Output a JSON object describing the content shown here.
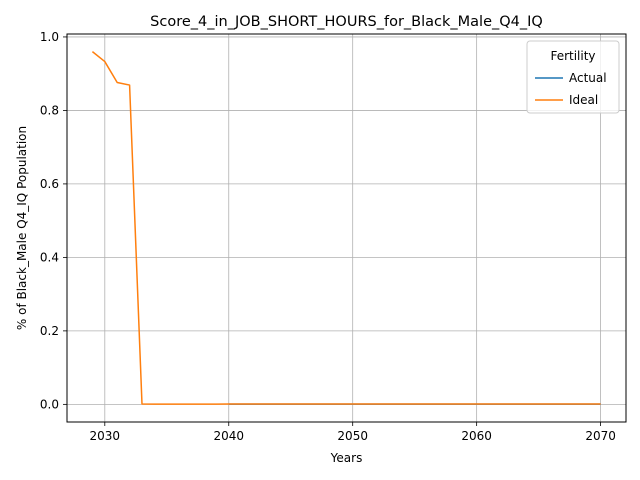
{
  "chart_data": {
    "type": "line",
    "title": "Score_4_in_JOB_SHORT_HOURS_for_Black_Male_Q4_IQ",
    "xlabel": "Years",
    "ylabel": "% of Black_Male Q4_IQ Population",
    "xlim": [
      2026.95,
      2072.05
    ],
    "ylim": [
      -0.048,
      1.008
    ],
    "xticks": [
      2030,
      2040,
      2050,
      2060,
      2070
    ],
    "yticks": [
      0.0,
      0.2,
      0.4,
      0.6,
      0.8,
      1.0
    ],
    "xtick_labels": [
      "2030",
      "2040",
      "2050",
      "2060",
      "2070"
    ],
    "ytick_labels": [
      "0.0",
      "0.2",
      "0.4",
      "0.6",
      "0.8",
      "1.0"
    ],
    "grid": true,
    "legend": {
      "title": "Fertility",
      "placement": "top-right"
    },
    "series": [
      {
        "name": "Actual",
        "color": "#1f77b4",
        "x": [
          2040,
          2041,
          2042,
          2043,
          2044,
          2045,
          2046,
          2047,
          2048,
          2049,
          2050,
          2051,
          2052,
          2053,
          2054,
          2055,
          2056,
          2057,
          2058,
          2059,
          2060,
          2061,
          2062,
          2063,
          2064,
          2065,
          2066,
          2067,
          2068,
          2069,
          2070
        ],
        "y": [
          0.0005,
          0.0005,
          0.0005,
          0.0005,
          0.0005,
          0.0005,
          0.0005,
          0.0005,
          0.0005,
          0.0005,
          0.0005,
          0.0005,
          0.0005,
          0.0005,
          0.0005,
          0.0005,
          0.0005,
          0.0005,
          0.0005,
          0.0005,
          0.0005,
          0.0005,
          0.0005,
          0.0005,
          0.0005,
          0.0005,
          0.0005,
          0.0005,
          0.0005,
          0.0005,
          0.0005
        ]
      },
      {
        "name": "Ideal",
        "color": "#ff7f0e",
        "x": [
          2029,
          2030,
          2031,
          2032,
          2033,
          2034,
          2035,
          2036,
          2037,
          2038,
          2039,
          2040,
          2041,
          2042,
          2043,
          2044,
          2045,
          2046,
          2047,
          2048,
          2049,
          2050,
          2051,
          2052,
          2053,
          2054,
          2055,
          2056,
          2057,
          2058,
          2059,
          2060,
          2061,
          2062,
          2063,
          2064,
          2065,
          2066,
          2067,
          2068,
          2069,
          2070
        ],
        "y": [
          0.96,
          0.933,
          0.876,
          0.869,
          0.001,
          0.0005,
          0.0005,
          0.0005,
          0.0005,
          0.0005,
          0.0005,
          0.001,
          0.001,
          0.001,
          0.001,
          0.001,
          0.001,
          0.001,
          0.001,
          0.001,
          0.001,
          0.001,
          0.001,
          0.001,
          0.001,
          0.001,
          0.001,
          0.001,
          0.001,
          0.001,
          0.001,
          0.001,
          0.001,
          0.001,
          0.001,
          0.001,
          0.001,
          0.001,
          0.001,
          0.001,
          0.001,
          0.001
        ]
      }
    ]
  }
}
